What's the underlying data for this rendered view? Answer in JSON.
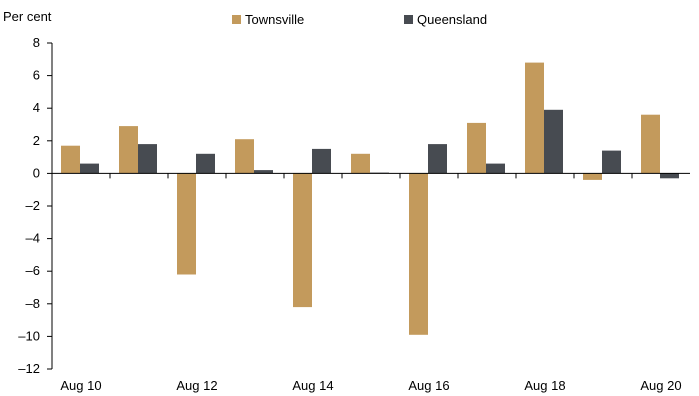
{
  "chart_data": {
    "type": "bar",
    "ylabel": "Per cent",
    "xlabel": "",
    "ylim": [
      -12,
      8
    ],
    "yticks": [
      8,
      6,
      4,
      2,
      0,
      -2,
      -4,
      -6,
      -8,
      -10,
      -12
    ],
    "ytick_labels": [
      "8",
      "6",
      "4",
      "2",
      "0",
      "–2",
      "–4",
      "–6",
      "–8",
      "–10",
      "–12"
    ],
    "categories": [
      "Aug 10",
      "Aug 11",
      "Aug 12",
      "Aug 13",
      "Aug 14",
      "Aug 15",
      "Aug 16",
      "Aug 17",
      "Aug 18",
      "Aug 19",
      "Aug 20"
    ],
    "xtick_labels": [
      "Aug 10",
      "",
      "Aug 12",
      "",
      "Aug 14",
      "",
      "Aug 16",
      "",
      "Aug 18",
      "",
      "Aug 20"
    ],
    "legend_position": "top",
    "grid": false,
    "series": [
      {
        "name": "Townsville",
        "color": "#C39A5C",
        "values": [
          1.7,
          2.9,
          -6.2,
          2.1,
          -8.2,
          1.2,
          -9.9,
          3.1,
          6.8,
          -0.4,
          3.6
        ]
      },
      {
        "name": "Queensland",
        "color": "#474B51",
        "values": [
          0.6,
          1.8,
          1.2,
          0.2,
          1.5,
          0.05,
          1.8,
          0.6,
          3.9,
          1.4,
          -0.3
        ]
      }
    ]
  }
}
